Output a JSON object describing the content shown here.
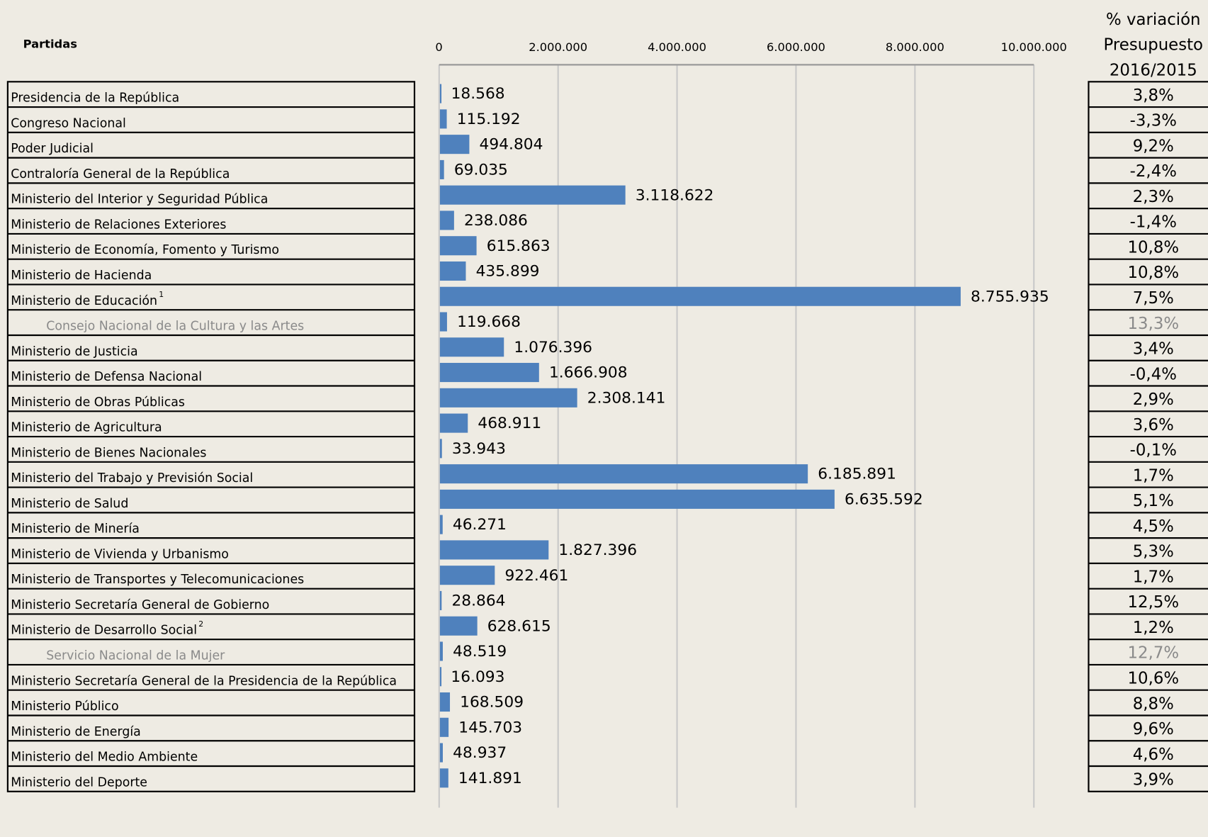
{
  "chart_data": {
    "type": "bar",
    "orientation": "horizontal",
    "row_header": "Partidas",
    "variation_header": [
      "% variación",
      "Presupuesto",
      "2016/2015"
    ],
    "categories": [
      "Presidencia de la República",
      "Congreso Nacional",
      "Poder Judicial",
      "Contraloría General de la República",
      "Ministerio del Interior y Seguridad Pública",
      "Ministerio de Relaciones Exteriores",
      "Ministerio de Economía, Fomento y Turismo",
      "Ministerio de Hacienda",
      "Ministerio de Educación",
      "Consejo Nacional de la Cultura y las Artes",
      "Ministerio de Justicia",
      "Ministerio de Defensa Nacional",
      "Ministerio de Obras Públicas",
      "Ministerio de Agricultura",
      "Ministerio de Bienes Nacionales",
      "Ministerio del Trabajo y Previsión Social",
      "Ministerio de Salud",
      "Ministerio de Minería",
      "Ministerio de Vivienda y Urbanismo",
      "Ministerio de Transportes y Telecomunicaciones",
      "Ministerio Secretaría General de Gobierno",
      "Ministerio de Desarrollo Social",
      "Servicio Nacional de la Mujer",
      "Ministerio Secretaría General de la Presidencia de la República",
      "Ministerio Público",
      "Ministerio de Energía",
      "Ministerio del Medio Ambiente",
      "Ministerio del Deporte"
    ],
    "category_notes": {
      "8": "1",
      "21": "2"
    },
    "values": [
      18568,
      115192,
      494804,
      69035,
      3118622,
      238086,
      615863,
      435899,
      8755935,
      119668,
      1076396,
      1666908,
      2308141,
      468911,
      33943,
      6185891,
      6635592,
      46271,
      1827396,
      922461,
      28864,
      628615,
      48519,
      16093,
      168509,
      145703,
      48937,
      141891
    ],
    "value_labels": [
      "18.568",
      "115.192",
      "494.804",
      "69.035",
      "3.118.622",
      "238.086",
      "615.863",
      "435.899",
      "8.755.935",
      "119.668",
      "1.076.396",
      "1.666.908",
      "2.308.141",
      "468.911",
      "33.943",
      "6.185.891",
      "6.635.592",
      "46.271",
      "1.827.396",
      "922.461",
      "28.864",
      "628.615",
      "48.519",
      "16.093",
      "168.509",
      "145.703",
      "48.937",
      "141.891"
    ],
    "variation": [
      "3,8%",
      "-3,3%",
      "9,2%",
      "-2,4%",
      "2,3%",
      "-1,4%",
      "10,8%",
      "10,8%",
      "7,5%",
      "13,3%",
      "3,4%",
      "-0,4%",
      "2,9%",
      "3,6%",
      "-0,1%",
      "1,7%",
      "5,1%",
      "4,5%",
      "5,3%",
      "1,7%",
      "12,5%",
      "1,2%",
      "12,7%",
      "10,6%",
      "8,8%",
      "9,6%",
      "4,6%",
      "3,9%"
    ],
    "color": "#4f81bd",
    "xlim": [
      0,
      10000000
    ],
    "xticks": [
      0,
      {
        "value": 2000000,
        "label": "2.000.000"
      },
      {
        "value": 4000000,
        "label": "4.000.000"
      },
      {
        "value": 6000000,
        "label": "6.000.000"
      },
      {
        "value": 8000000,
        "label": "8.000.000"
      },
      {
        "value": 10000000,
        "label": "10.000.000"
      }
    ],
    "grid": true
  }
}
